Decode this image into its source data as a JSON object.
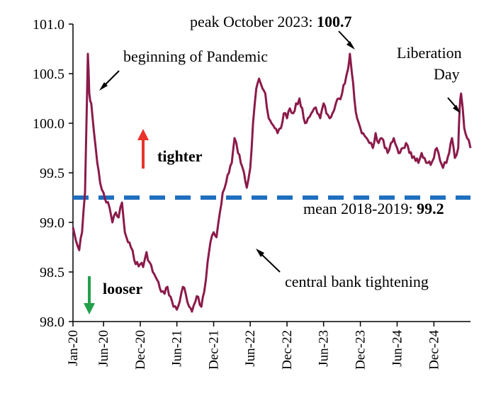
{
  "chart_data": {
    "type": "line",
    "title": "",
    "xlabel": "",
    "ylabel": "",
    "ylim": [
      98.0,
      101.0
    ],
    "xlim": [
      "2020-01",
      "2025-06"
    ],
    "y_ticks": [
      "98.0",
      "98.5",
      "99.0",
      "99.5",
      "100.0",
      "100.5",
      "101.0"
    ],
    "x_ticks": [
      "Jan-20",
      "Jun-20",
      "Dec-20",
      "Jun-21",
      "Dec-21",
      "Jun-22",
      "Dec-22",
      "Jun-23",
      "Dec-23",
      "Jun-24",
      "Dec-24"
    ],
    "grid": false,
    "legend": "none",
    "colors": {
      "series": "#8b1a4a",
      "mean_line": "#1f6fbf",
      "up_arrow": "#e8322a",
      "down_arrow": "#22a04a"
    },
    "series": [
      {
        "x": [
          "2020-01-01",
          "2020-01-15",
          "2020-02-01",
          "2020-02-15",
          "2020-03-01",
          "2020-03-10",
          "2020-03-15",
          "2020-03-22",
          "2020-04-01",
          "2020-04-15",
          "2020-05-01",
          "2020-05-15",
          "2020-06-01",
          "2020-06-15",
          "2020-07-01",
          "2020-07-15",
          "2020-08-01",
          "2020-08-15",
          "2020-09-01",
          "2020-09-15",
          "2020-10-01",
          "2020-10-15",
          "2020-11-01",
          "2020-11-15",
          "2020-12-01",
          "2020-12-15",
          "2021-01-01",
          "2021-01-15",
          "2021-02-01",
          "2021-02-15",
          "2021-03-01",
          "2021-03-15",
          "2021-04-01",
          "2021-04-15",
          "2021-05-01",
          "2021-05-15",
          "2021-06-01",
          "2021-06-15",
          "2021-07-01",
          "2021-07-15",
          "2021-08-01",
          "2021-08-15",
          "2021-09-01",
          "2021-09-15",
          "2021-10-01",
          "2021-10-15",
          "2021-11-01",
          "2021-11-15",
          "2021-12-01",
          "2021-12-15",
          "2022-01-01",
          "2022-01-15",
          "2022-02-01",
          "2022-02-15",
          "2022-03-01",
          "2022-03-15",
          "2022-04-01",
          "2022-04-15",
          "2022-05-01",
          "2022-05-15",
          "2022-06-01",
          "2022-06-15",
          "2022-07-01",
          "2022-07-15",
          "2022-08-01",
          "2022-08-15",
          "2022-09-01",
          "2022-09-15",
          "2022-10-01",
          "2022-10-15",
          "2022-11-01",
          "2022-11-15",
          "2022-12-01",
          "2022-12-15",
          "2023-01-01",
          "2023-01-15",
          "2023-02-01",
          "2023-02-15",
          "2023-03-01",
          "2023-03-15",
          "2023-04-01",
          "2023-04-15",
          "2023-05-01",
          "2023-05-15",
          "2023-06-01",
          "2023-06-15",
          "2023-07-01",
          "2023-07-15",
          "2023-08-01",
          "2023-08-15",
          "2023-09-01",
          "2023-09-15",
          "2023-10-01",
          "2023-10-10",
          "2023-10-20",
          "2023-11-01",
          "2023-11-15",
          "2023-12-01",
          "2023-12-15",
          "2024-01-01",
          "2024-01-15",
          "2024-02-01",
          "2024-02-15",
          "2024-03-01",
          "2024-03-15",
          "2024-04-01",
          "2024-04-15",
          "2024-05-01",
          "2024-05-15",
          "2024-06-01",
          "2024-06-15",
          "2024-07-01",
          "2024-07-15",
          "2024-08-01",
          "2024-08-15",
          "2024-09-01",
          "2024-09-15",
          "2024-10-01",
          "2024-10-15",
          "2024-11-01",
          "2024-11-15",
          "2024-12-01",
          "2024-12-15",
          "2025-01-01",
          "2025-01-15",
          "2025-02-01",
          "2025-02-15",
          "2025-03-01",
          "2025-03-15",
          "2025-04-01",
          "2025-04-08",
          "2025-04-15",
          "2025-05-01",
          "2025-05-15",
          "2025-06-01"
        ],
        "y": [
          98.95,
          98.82,
          98.72,
          98.9,
          99.3,
          100.2,
          100.7,
          100.3,
          100.2,
          99.9,
          99.6,
          99.4,
          99.3,
          99.2,
          99.15,
          99.0,
          99.1,
          99.05,
          99.2,
          98.9,
          98.8,
          98.75,
          98.62,
          98.6,
          98.58,
          98.55,
          98.7,
          98.6,
          98.5,
          98.45,
          98.4,
          98.3,
          98.28,
          98.35,
          98.25,
          98.15,
          98.12,
          98.2,
          98.35,
          98.28,
          98.15,
          98.1,
          98.2,
          98.25,
          98.15,
          98.3,
          98.6,
          98.8,
          98.9,
          98.85,
          99.1,
          99.3,
          99.4,
          99.5,
          99.6,
          99.85,
          99.7,
          99.6,
          99.5,
          99.35,
          99.55,
          100.0,
          100.35,
          100.45,
          100.35,
          100.3,
          100.05,
          100.0,
          99.95,
          99.9,
          99.95,
          100.1,
          100.05,
          100.15,
          100.1,
          100.2,
          100.25,
          100.15,
          100.0,
          100.05,
          100.1,
          100.15,
          100.1,
          100.05,
          100.2,
          100.1,
          100.05,
          100.1,
          100.2,
          100.25,
          100.3,
          100.4,
          100.55,
          100.7,
          100.5,
          100.25,
          100.05,
          99.95,
          99.9,
          99.85,
          99.8,
          99.75,
          99.9,
          99.8,
          99.85,
          99.75,
          99.7,
          99.8,
          99.85,
          99.75,
          99.7,
          99.75,
          99.8,
          99.7,
          99.65,
          99.62,
          99.6,
          99.7,
          99.65,
          99.6,
          99.58,
          99.65,
          99.75,
          99.62,
          99.55,
          99.6,
          99.7,
          99.85,
          99.65,
          99.75,
          100.15,
          100.3,
          99.95,
          99.85,
          99.75
        ],
        "values_note": ""
      }
    ],
    "mean": {
      "value": 99.25
    },
    "annotations": {
      "pandemic": "beginning  of Pandemic",
      "peak_prefix": "peak October 2023: ",
      "peak_value": "100.7",
      "liberation_line1": "Liberation",
      "liberation_line2": "Day",
      "tighter": "tighter",
      "looser": "looser",
      "mean_prefix": "mean 2018-2019: ",
      "mean_value": "99.2",
      "central_bank": "central bank tightening"
    }
  }
}
